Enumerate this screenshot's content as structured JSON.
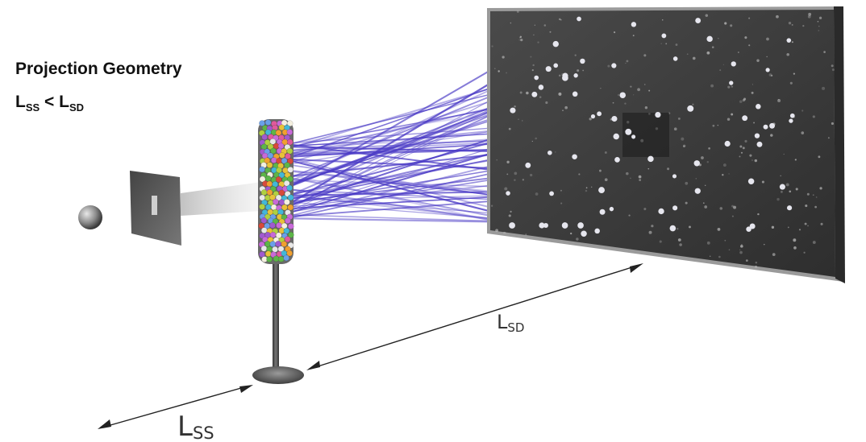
{
  "title": "Projection Geometry",
  "relation": {
    "lhs_main": "L",
    "lhs_sub": "SS",
    "operator": " < ",
    "rhs_main": "L",
    "rhs_sub": "SD"
  },
  "labels": {
    "lsd_main": "L",
    "lsd_sub": "SD",
    "lss_main": "L",
    "lss_sub": "SS"
  },
  "colors": {
    "beam": "#5a4bd0",
    "detector": "#3a3a3a",
    "frame": "#9a9a9a"
  }
}
